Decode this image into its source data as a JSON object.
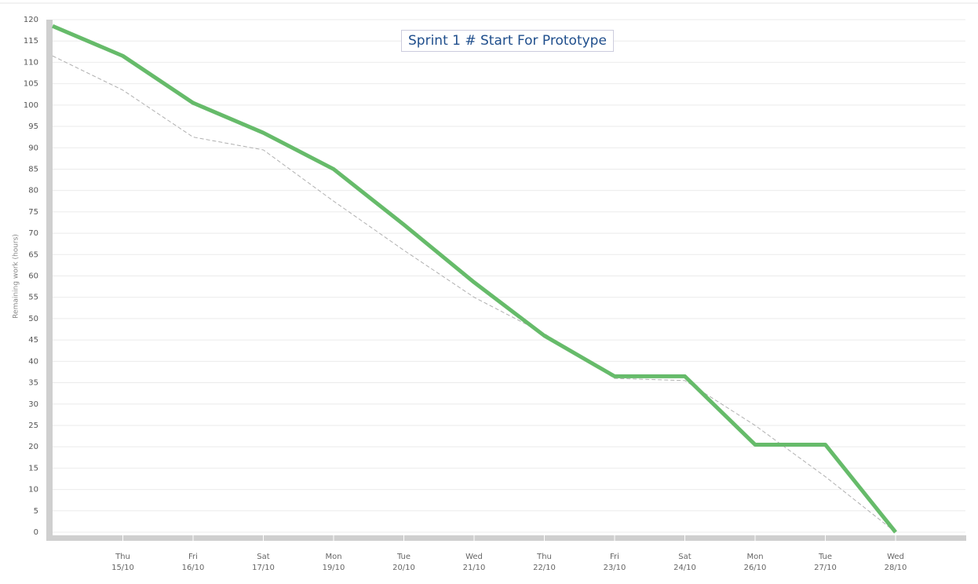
{
  "chart_data": {
    "type": "line",
    "title": "Sprint 1 # Start For Prototype",
    "y_label": "Remaining work (hours)",
    "categories": [
      null,
      "Thu 15/10",
      "Fri 16/10",
      "Sat 17/10",
      "Mon 19/10",
      "Tue 20/10",
      "Wed 21/10",
      "Thu 22/10",
      "Fri 23/10",
      "Sat 24/10",
      "Mon 26/10",
      "Tue 27/10",
      "Wed 28/10"
    ],
    "series": [
      {
        "color": "#66bb6a",
        "style": "solid",
        "values": [
          118.5,
          111.5,
          100.5,
          93.5,
          85,
          72,
          58.5,
          46,
          36.5,
          36.5,
          20.5,
          20.5,
          0
        ]
      },
      {
        "color": "#b0b0b0",
        "style": "dashed",
        "values": [
          111.5,
          103.5,
          92.5,
          89.5,
          77.5,
          66,
          55,
          46.5,
          36,
          35.5,
          25,
          13,
          0
        ]
      }
    ],
    "ylim": [
      0,
      120
    ],
    "yticks": [
      0,
      5,
      10,
      15,
      20,
      25,
      30,
      35,
      40,
      45,
      50,
      55,
      60,
      65,
      70,
      75,
      80,
      85,
      90,
      95,
      100,
      105,
      110,
      115,
      120
    ],
    "grid": true
  }
}
